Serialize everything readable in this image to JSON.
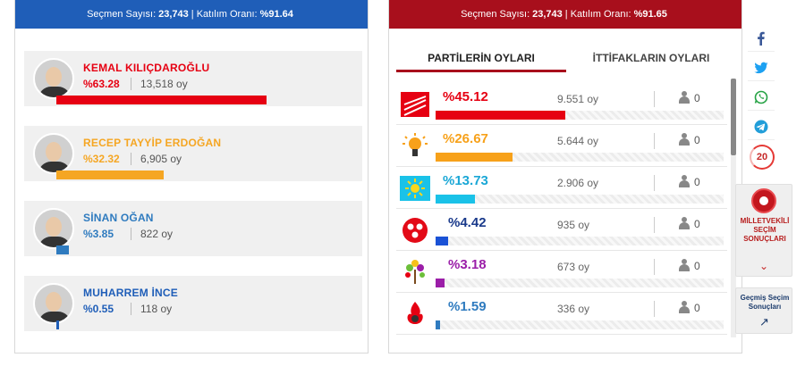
{
  "left": {
    "header_prefix": "Seçmen Sayısı:",
    "voter_count": "23,743",
    "header_sep": "|",
    "turnout_label": "Katılım Oranı:",
    "turnout": "%91.64",
    "candidates": [
      {
        "name": "KEMAL KILIÇDAROĞLU",
        "pct": "%63.28",
        "votes": "13,518 oy",
        "share": 63.28,
        "color": "#e60012"
      },
      {
        "name": "RECEP TAYYİP ERDOĞAN",
        "pct": "%32.32",
        "votes": "6,905 oy",
        "share": 32.32,
        "color": "#f5a623"
      },
      {
        "name": "SİNAN OĞAN",
        "pct": "%3.85",
        "votes": "822 oy",
        "share": 3.85,
        "color": "#2f7bbf"
      },
      {
        "name": "MUHARREM İNCE",
        "pct": "%0.55",
        "votes": "118 oy",
        "share": 0.55,
        "color": "#1f5eb8"
      }
    ]
  },
  "right": {
    "header_prefix": "Seçmen Sayısı:",
    "voter_count": "23,743",
    "header_sep": "|",
    "turnout_label": "Katılım Oranı:",
    "turnout": "%91.65",
    "tab_parties": "PARTİLERİN OYLARI",
    "tab_alliances": "İTTİFAKLARIN OYLARI",
    "parties": [
      {
        "logo": "chp-logo-icon",
        "pct": "%45.12",
        "votes": "9.551 oy",
        "seats": "0",
        "share": 45.12,
        "color": "#e60012",
        "pct_color": "#e60012"
      },
      {
        "logo": "akp-logo-icon",
        "pct": "%26.67",
        "votes": "5.644 oy",
        "seats": "0",
        "share": 26.67,
        "color": "#f7a11a",
        "pct_color": "#f7a11a"
      },
      {
        "logo": "iyi-logo-icon",
        "pct": "%13.73",
        "votes": "2.906 oy",
        "seats": "0",
        "share": 13.73,
        "color": "#1ac2e8",
        "pct_color": "#1aa7d6"
      },
      {
        "logo": "mhp-logo-icon",
        "pct": "%4.42",
        "votes": "935 oy",
        "seats": "0",
        "share": 4.42,
        "color": "#1a52d6",
        "pct_color": "#1a3a8b"
      },
      {
        "logo": "yesil-sol-logo-icon",
        "pct": "%3.18",
        "votes": "673 oy",
        "seats": "0",
        "share": 3.18,
        "color": "#9b1ea8",
        "pct_color": "#9b1ea8"
      },
      {
        "logo": "tip-logo-icon",
        "pct": "%1.59",
        "votes": "336 oy",
        "seats": "0",
        "share": 1.59,
        "color": "#2f7bbf",
        "pct_color": "#2f7bbf"
      }
    ]
  },
  "sidebar": {
    "share_icons": [
      "facebook-icon",
      "twitter-icon",
      "whatsapp-icon",
      "telegram-icon"
    ],
    "counter": "20",
    "mv_label_lines": [
      "MİLLETVEKİLİ",
      "SEÇİM",
      "SONUÇLARI"
    ],
    "history_label_lines": [
      "Geçmiş Seçim",
      "Sonuçları"
    ]
  }
}
